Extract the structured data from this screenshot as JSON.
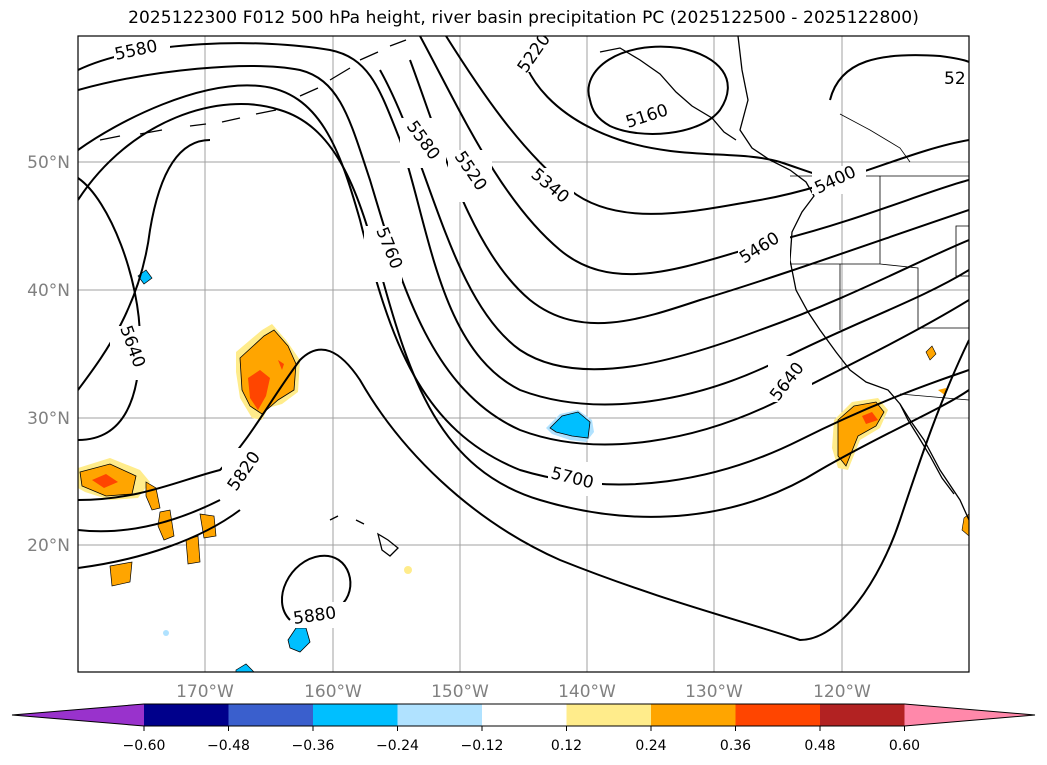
{
  "title": "2025122300 F012 500 hPa height, river basin precipitation PC (2025122500 - 2025122800)",
  "axes": {
    "lat_labels": [
      "50°N",
      "40°N",
      "30°N",
      "20°N"
    ],
    "lon_labels": [
      "170°W",
      "160°W",
      "150°W",
      "140°W",
      "130°W",
      "120°W"
    ]
  },
  "contour_labels": [
    "5580",
    "5220",
    "5160",
    "52",
    "5580",
    "5520",
    "5340",
    "5400",
    "5460",
    "5760",
    "5640",
    "5640",
    "5700",
    "5820",
    "5880"
  ],
  "colorbar": {
    "ticks": [
      "−0.60",
      "−0.48",
      "−0.36",
      "−0.24",
      "−0.12",
      "0.12",
      "0.24",
      "0.36",
      "0.48",
      "0.60"
    ],
    "colors": [
      "#9932cc",
      "#00008b",
      "#3a5fcd",
      "#00bfff",
      "#b0e2ff",
      "#ffffff",
      "#ffec8b",
      "#ffa500",
      "#ff4500",
      "#b22222",
      "#ff88aa"
    ]
  }
}
